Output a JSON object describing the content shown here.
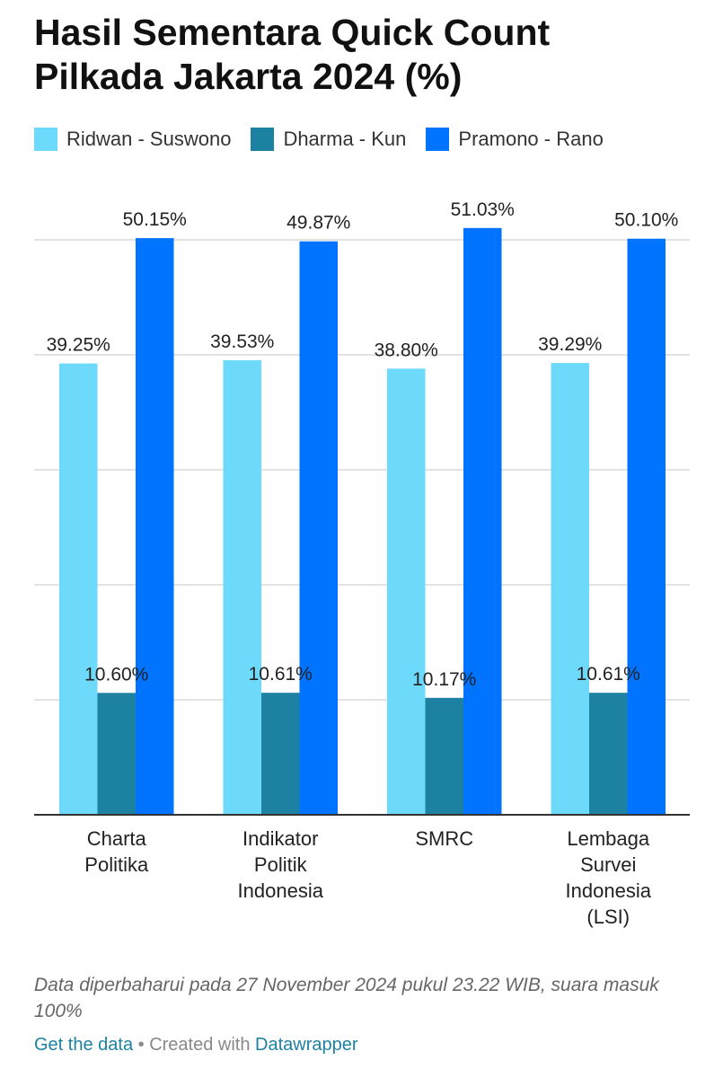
{
  "header": {
    "title_line1": "Hasil Sementara Quick Count",
    "title_line2": "Pilkada Jakarta 2024 (%)"
  },
  "footnote": "Data diperbaharui pada 27 November 2024 pukul 23.22 WIB, suara masuk 100%",
  "footer": {
    "get_data": "Get the data",
    "separator": " • Created with ",
    "datawrapper": "Datawrapper"
  },
  "chart_data": {
    "type": "bar",
    "categories": [
      [
        "Charta",
        "Politika"
      ],
      [
        "Indikator",
        "Politik",
        "Indonesia"
      ],
      [
        "SMRC"
      ],
      [
        "Lembaga",
        "Survei",
        "Indonesia",
        "(LSI)"
      ]
    ],
    "series": [
      {
        "name": "Ridwan - Suswono",
        "color": "#6dd9fb",
        "values": [
          39.25,
          39.53,
          38.8,
          39.29
        ],
        "labels": [
          "39.25%",
          "39.53%",
          "38.80%",
          "39.29%"
        ]
      },
      {
        "name": "Dharma - Kun",
        "color": "#1d81a2",
        "values": [
          10.6,
          10.61,
          10.17,
          10.61
        ],
        "labels": [
          "10.60%",
          "10.61%",
          "10.17%",
          "10.61%"
        ]
      },
      {
        "name": "Pramono - Rano",
        "color": "#0073ff",
        "values": [
          50.15,
          49.87,
          51.03,
          50.1
        ],
        "labels": [
          "50.15%",
          "49.87%",
          "51.03%",
          "50.10%"
        ]
      }
    ],
    "ylim": [
      0,
      50
    ],
    "yticks": [
      0,
      10,
      20,
      30,
      40,
      50
    ],
    "grid": true,
    "legend": "top-left"
  }
}
